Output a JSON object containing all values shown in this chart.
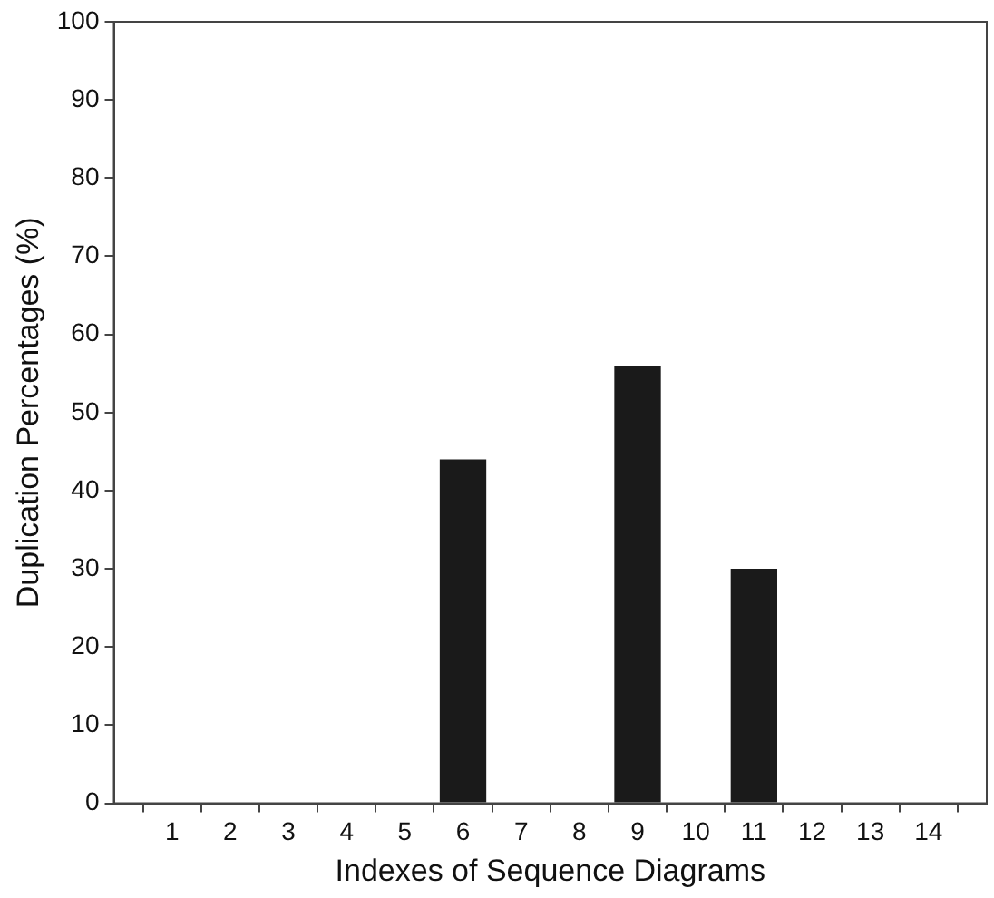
{
  "chart_data": {
    "type": "bar",
    "xlabel": "Indexes of Sequence Diagrams",
    "ylabel": "Duplication Percentages (%)",
    "x": [
      1,
      2,
      3,
      4,
      5,
      6,
      7,
      8,
      9,
      10,
      11,
      12,
      13,
      14
    ],
    "values": [
      0,
      0,
      0,
      0,
      0,
      44,
      0,
      0,
      56,
      0,
      30,
      0,
      0,
      0
    ],
    "color": "#1a1a1a",
    "xlim": [
      0,
      15
    ],
    "xticks": [
      1,
      2,
      3,
      4,
      5,
      6,
      7,
      8,
      9,
      10,
      11,
      12,
      13,
      14
    ],
    "ylim": [
      0,
      100
    ],
    "yticks": [
      0,
      10,
      20,
      30,
      40,
      50,
      60,
      70,
      80,
      90,
      100
    ],
    "grid": false,
    "legend": false
  }
}
